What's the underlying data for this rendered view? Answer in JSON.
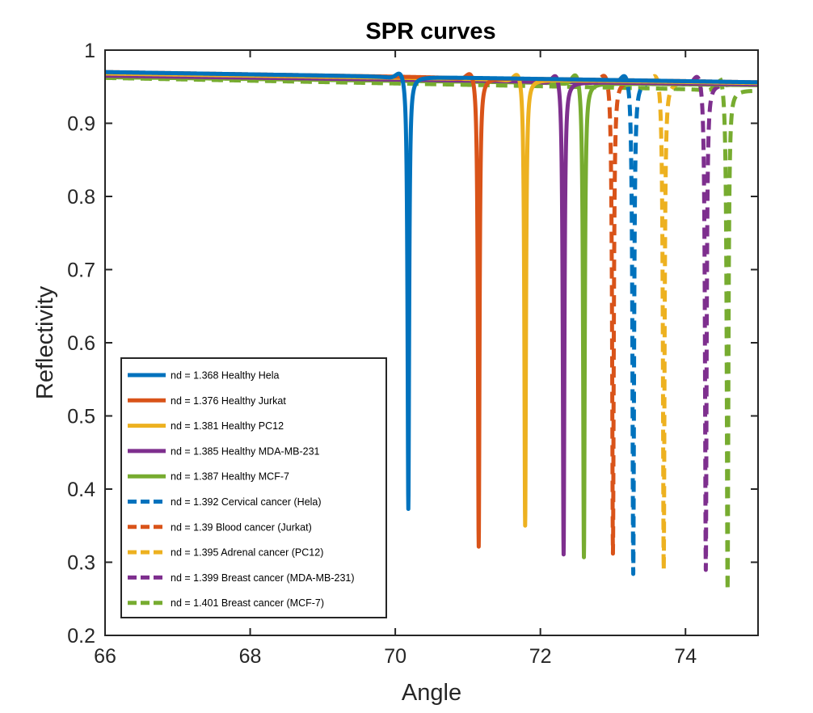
{
  "chart_data": {
    "type": "line",
    "title": "SPR curves",
    "xlabel": "Angle",
    "ylabel": "Reflectivity",
    "xlim": [
      66,
      75
    ],
    "ylim": [
      0.2,
      1
    ],
    "xticks": [
      "66",
      "68",
      "70",
      "72",
      "74"
    ],
    "yticks": [
      "0.2",
      "0.3",
      "0.4",
      "0.5",
      "0.6",
      "0.7",
      "0.8",
      "0.9",
      "1"
    ],
    "grid": false,
    "legend_position": "lower-left",
    "series": [
      {
        "name": "nd = 1.368 Healthy Hela",
        "color": "#0072BD",
        "style": "solid",
        "start": 0.97,
        "peak_angle": 70.08,
        "peak": 0.975,
        "min_angle": 70.18,
        "min": 0.37,
        "end": 0.956
      },
      {
        "name": "nd = 1.376 Healthy Jurkat",
        "color": "#D95319",
        "style": "solid",
        "start": 0.97,
        "peak_angle": 71.05,
        "peak": 0.975,
        "min_angle": 71.15,
        "min": 0.318,
        "end": 0.956
      },
      {
        "name": "nd = 1.381 Healthy PC12",
        "color": "#EDB120",
        "style": "solid",
        "start": 0.968,
        "peak_angle": 71.7,
        "peak": 0.975,
        "min_angle": 71.79,
        "min": 0.345,
        "end": 0.955
      },
      {
        "name": "nd = 1.385 Healthy MDA-MB-231",
        "color": "#7E2F8E",
        "style": "solid",
        "start": 0.965,
        "peak_angle": 72.23,
        "peak": 0.974,
        "min_angle": 72.32,
        "min": 0.305,
        "end": 0.953
      },
      {
        "name": "nd = 1.387 Healthy MCF-7",
        "color": "#77AC30",
        "style": "solid",
        "start": 0.963,
        "peak_angle": 72.5,
        "peak": 0.974,
        "min_angle": 72.6,
        "min": 0.302,
        "end": 0.952
      },
      {
        "name": "nd = 1.392 Cervical cancer (Hela)",
        "color": "#0072BD",
        "style": "dashed",
        "start": 0.966,
        "peak_angle": 73.18,
        "peak": 0.973,
        "min_angle": 73.28,
        "min": 0.28,
        "end": 0.955
      },
      {
        "name": "nd = 1.39 Blood cancer (Jurkat)",
        "color": "#D95319",
        "style": "dashed",
        "start": 0.968,
        "peak_angle": 72.9,
        "peak": 0.973,
        "min_angle": 73.0,
        "min": 0.308,
        "end": 0.955
      },
      {
        "name": "nd = 1.395 Adrenal cancer (PC12)",
        "color": "#EDB120",
        "style": "dashed",
        "start": 0.966,
        "peak_angle": 73.6,
        "peak": 0.973,
        "min_angle": 73.7,
        "min": 0.285,
        "end": 0.955
      },
      {
        "name": "nd = 1.399 Breast cancer (MDA-MB-231)",
        "color": "#7E2F8E",
        "style": "dashed",
        "start": 0.964,
        "peak_angle": 74.18,
        "peak": 0.972,
        "min_angle": 74.28,
        "min": 0.285,
        "end": 0.953
      },
      {
        "name": "nd = 1.401 Breast cancer (MCF-7)",
        "color": "#77AC30",
        "style": "dashed",
        "start": 0.962,
        "peak_angle": 74.48,
        "peak": 0.972,
        "min_angle": 74.58,
        "min": 0.255,
        "end": 0.945
      }
    ]
  }
}
